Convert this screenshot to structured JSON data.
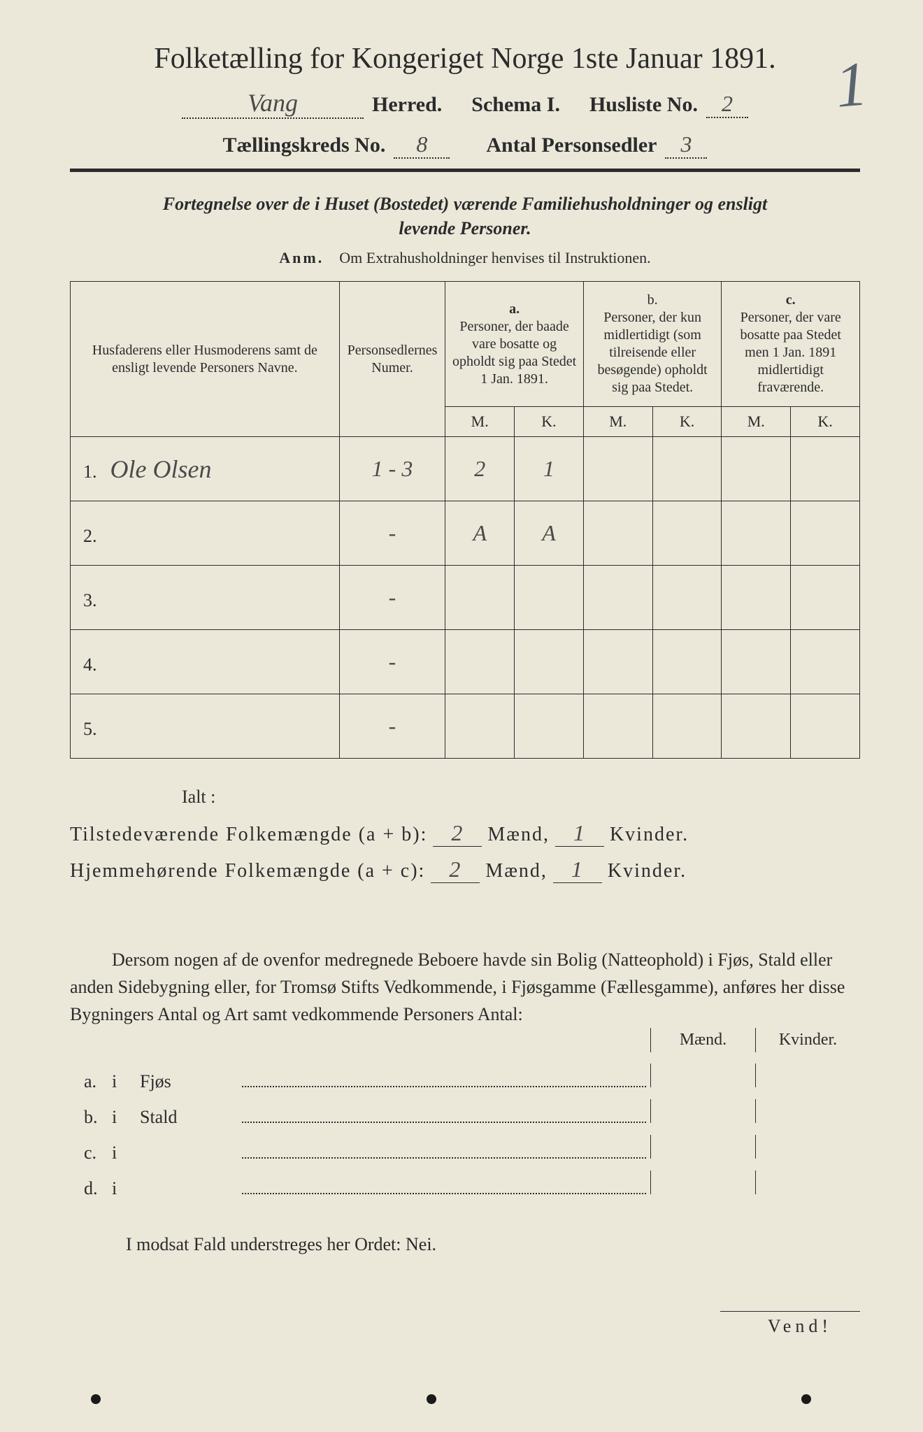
{
  "page_number_mark": "1",
  "title": "Folketælling for Kongeriget Norge 1ste Januar 1891.",
  "herred_value": "Vang",
  "herred_label": "Herred.",
  "schema_label": "Schema I.",
  "husliste_label": "Husliste No.",
  "husliste_value": "2",
  "kreds_label": "Tællingskreds No.",
  "kreds_value": "8",
  "antal_label": "Antal Personsedler",
  "antal_value": "3",
  "intro_line1": "Fortegnelse over de i Huset (Bostedet) værende Familiehusholdninger og ensligt",
  "intro_line2": "levende Personer.",
  "anm_label": "Anm.",
  "anm_text": "Om Extrahusholdninger henvises til Instruktionen.",
  "table": {
    "col_name": "Husfaderens eller Husmoderens samt de ensligt levende Personers Navne.",
    "col_num": "Personsedlernes Numer.",
    "col_a_label": "a.",
    "col_a": "Personer, der baade vare bosatte og opholdt sig paa Stedet 1 Jan. 1891.",
    "col_b_label": "b.",
    "col_b": "Personer, der kun midlertidigt (som tilreisende eller besøgende) opholdt sig paa Stedet.",
    "col_c_label": "c.",
    "col_c": "Personer, der vare bosatte paa Stedet men 1 Jan. 1891 midlertidigt fraværende.",
    "m": "M.",
    "k": "K.",
    "rows": [
      {
        "n": "1.",
        "name": "Ole Olsen",
        "num": "1 - 3",
        "a_m": "2",
        "a_k": "1",
        "b_m": "",
        "b_k": "",
        "c_m": "",
        "c_k": ""
      },
      {
        "n": "2.",
        "name": "",
        "num": "-",
        "a_m": "A",
        "a_k": "A",
        "b_m": "",
        "b_k": "",
        "c_m": "",
        "c_k": ""
      },
      {
        "n": "3.",
        "name": "",
        "num": "-",
        "a_m": "",
        "a_k": "",
        "b_m": "",
        "b_k": "",
        "c_m": "",
        "c_k": ""
      },
      {
        "n": "4.",
        "name": "",
        "num": "-",
        "a_m": "",
        "a_k": "",
        "b_m": "",
        "b_k": "",
        "c_m": "",
        "c_k": ""
      },
      {
        "n": "5.",
        "name": "",
        "num": "-",
        "a_m": "",
        "a_k": "",
        "b_m": "",
        "b_k": "",
        "c_m": "",
        "c_k": ""
      }
    ]
  },
  "ialt": "Ialt :",
  "present_label": "Tilstedeværende Folkemængde (a + b):",
  "resident_label": "Hjemmehørende Folkemængde (a + c):",
  "maend": "Mænd,",
  "kvinder": "Kvinder.",
  "present_m": "2",
  "present_k": "1",
  "resident_m": "2",
  "resident_k": "1",
  "para": "Dersom nogen af de ovenfor medregnede Beboere havde sin Bolig (Natteophold) i Fjøs, Stald eller anden Sidebygning eller, for Tromsø Stifts Vedkommende, i Fjøsgamme (Fællesgamme), anføres her disse Bygningers Antal og Art samt vedkommende Personers Antal:",
  "side_maend": "Mænd.",
  "side_kvinder": "Kvinder.",
  "side_rows": [
    {
      "lbl": "a.",
      "i": "i",
      "type": "Fjøs"
    },
    {
      "lbl": "b.",
      "i": "i",
      "type": "Stald"
    },
    {
      "lbl": "c.",
      "i": "i",
      "type": ""
    },
    {
      "lbl": "d.",
      "i": "i",
      "type": ""
    }
  ],
  "nei": "I modsat Fald understreges her Ordet: Nei.",
  "vend": "Vend!",
  "colors": {
    "background": "#ebe8da",
    "text": "#2b2b2b",
    "handwriting": "#4a4a4a",
    "pencil_mark": "#5a6470"
  }
}
